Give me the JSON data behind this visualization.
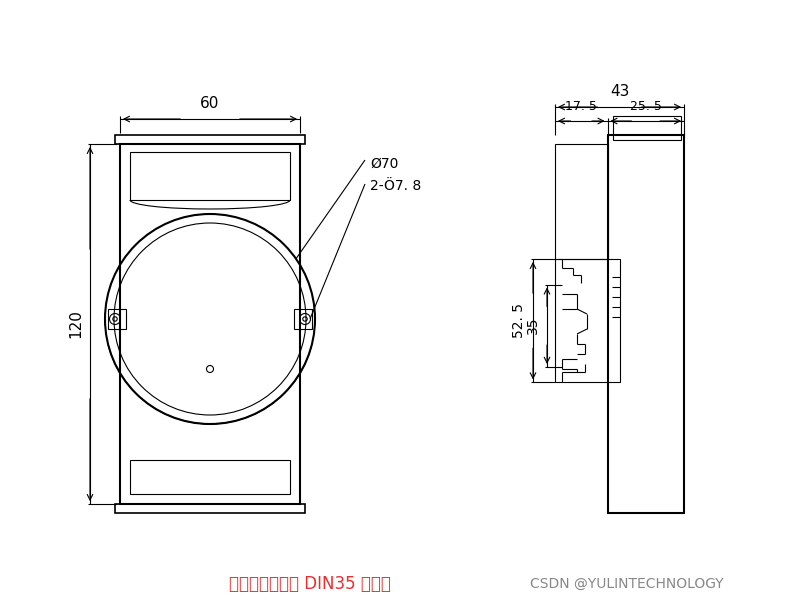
{
  "bg_color": "#ffffff",
  "line_color": "#000000",
  "text_red": "#e63030",
  "text_gray": "#888888",
  "annotation_line1": "可以安装在标准 DIN35 导轨上",
  "annotation_line2": "CSDN @YULINTECHNOLOGY",
  "dim_60": "60",
  "dim_120": "120",
  "dim_43": "43",
  "dim_17_5": "17. 5",
  "dim_25_5": "25. 5",
  "dim_52_5": "52. 5",
  "dim_35": "35",
  "dim_phi70": "Ø70",
  "dim_phi7_8": "2-Ö7. 8"
}
